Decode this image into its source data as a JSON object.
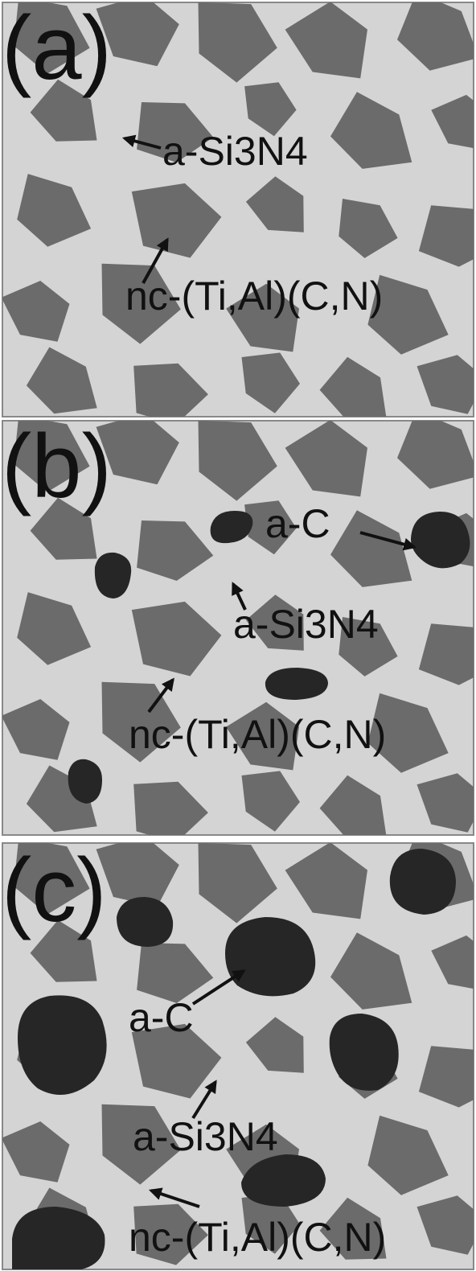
{
  "panels": [
    {
      "label": "(a)",
      "annotations": [
        "a-Si3N4",
        "nc-(Ti,Al)(C,N)"
      ]
    },
    {
      "label": "(b)",
      "annotations": [
        "a-C",
        "a-Si3N4",
        "nc-(Ti,Al)(C,N)"
      ]
    },
    {
      "label": "(c)",
      "annotations": [
        "a-C",
        "a-Si3N4",
        "nc-(Ti,Al)(C,N)"
      ]
    }
  ]
}
